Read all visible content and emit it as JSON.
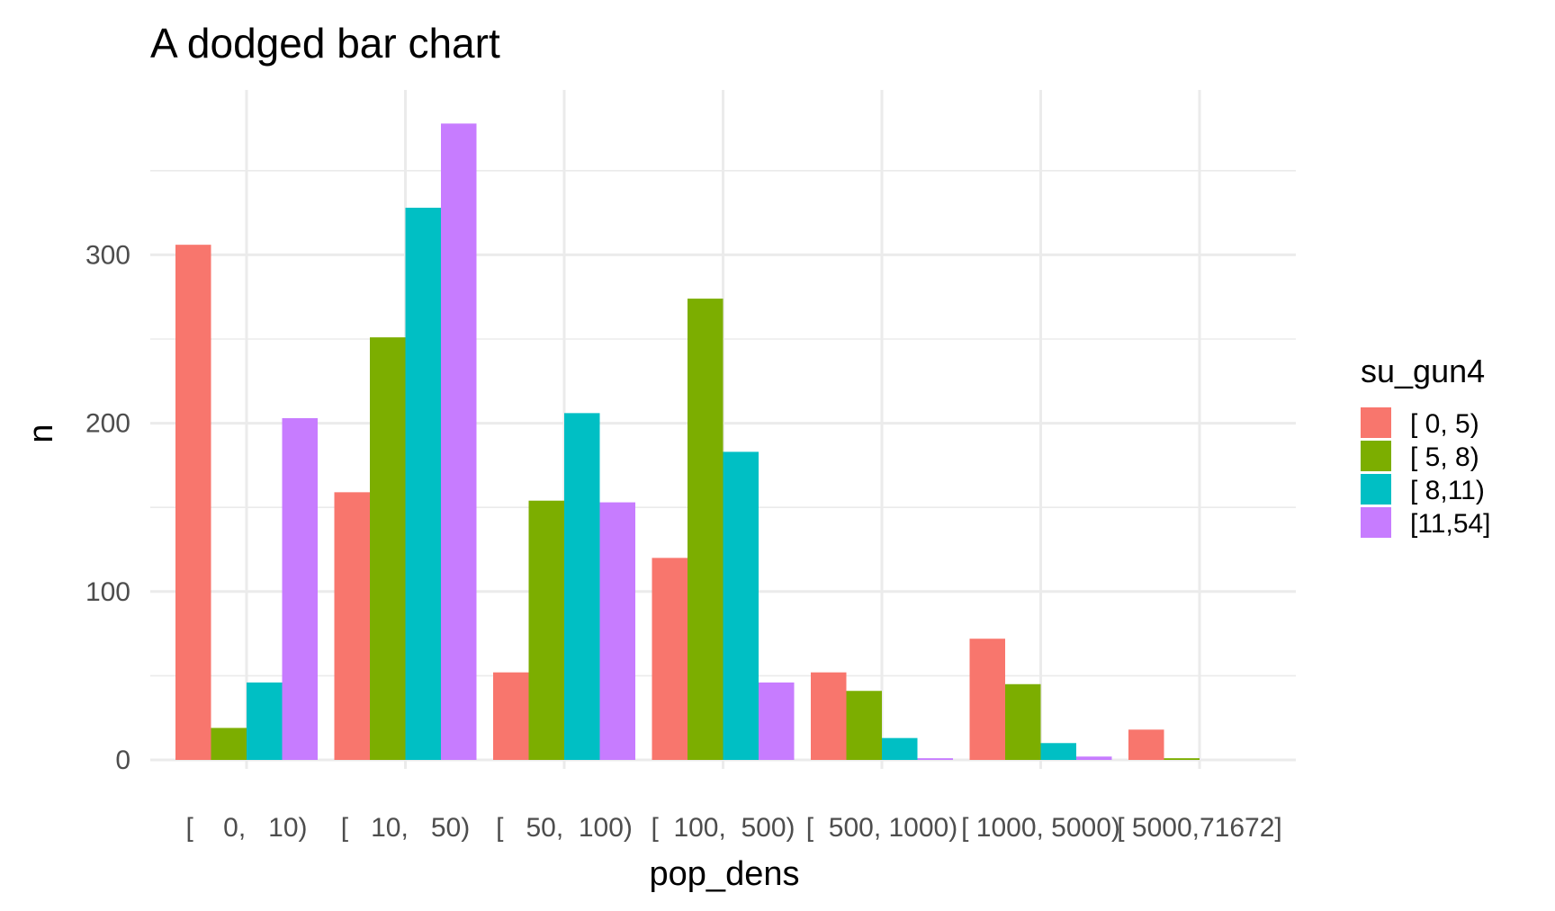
{
  "chart_data": {
    "type": "bar",
    "title": "A dodged bar chart",
    "xlabel": "pop_dens",
    "ylabel": "n",
    "categories": [
      "[    0,   10)",
      "[   10,   50)",
      "[   50,  100)",
      "[  100,  500)",
      "[  500, 1000)",
      "[ 1000, 5000)",
      "[ 5000,71672]"
    ],
    "legend_title": "su_gun4",
    "legend_position": "right",
    "series": [
      {
        "name": "[ 0, 5)",
        "color": "#F8766D",
        "values": [
          306,
          159,
          52,
          120,
          52,
          72,
          18
        ]
      },
      {
        "name": "[ 5, 8)",
        "color": "#7CAE00",
        "values": [
          19,
          251,
          154,
          274,
          41,
          45,
          1
        ]
      },
      {
        "name": "[ 8,11)",
        "color": "#00BFC4",
        "values": [
          46,
          328,
          206,
          183,
          13,
          10,
          0
        ]
      },
      {
        "name": "[11,54]",
        "color": "#C77CFF",
        "values": [
          203,
          378,
          153,
          46,
          1,
          2,
          0
        ]
      }
    ],
    "yticks": [
      0,
      100,
      200,
      300
    ],
    "ylim": [
      0,
      378
    ],
    "grid": true
  }
}
